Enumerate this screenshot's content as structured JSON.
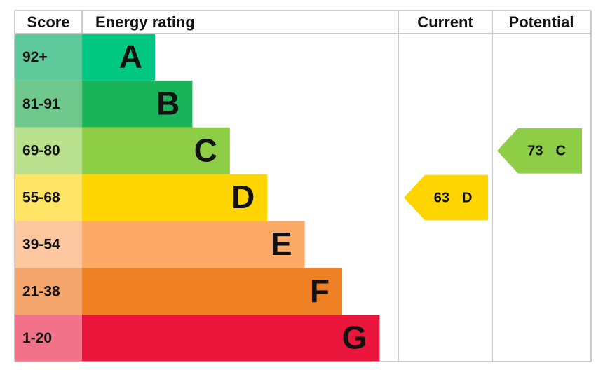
{
  "chart_data": {
    "type": "epc",
    "headers": {
      "score": "Score",
      "rating": "Energy rating",
      "current": "Current",
      "potential": "Potential"
    },
    "bands": [
      {
        "score": "92+",
        "letter": "A",
        "color": "#00c781",
        "score_color": "#5ec99b"
      },
      {
        "score": "81-91",
        "letter": "B",
        "color": "#19b459",
        "score_color": "#6fc98c"
      },
      {
        "score": "69-80",
        "letter": "C",
        "color": "#8dce46",
        "score_color": "#b9e08c"
      },
      {
        "score": "55-68",
        "letter": "D",
        "color": "#ffd500",
        "score_color": "#ffe466"
      },
      {
        "score": "39-54",
        "letter": "E",
        "color": "#fcaa65",
        "score_color": "#fdc7a0"
      },
      {
        "score": "21-38",
        "letter": "F",
        "color": "#ef8023",
        "score_color": "#f5a66c"
      },
      {
        "score": "1-20",
        "letter": "G",
        "color": "#e9153b",
        "score_color": "#f27389"
      }
    ],
    "current": {
      "value": 63,
      "letter": "D"
    },
    "potential": {
      "value": 73,
      "letter": "C"
    }
  }
}
